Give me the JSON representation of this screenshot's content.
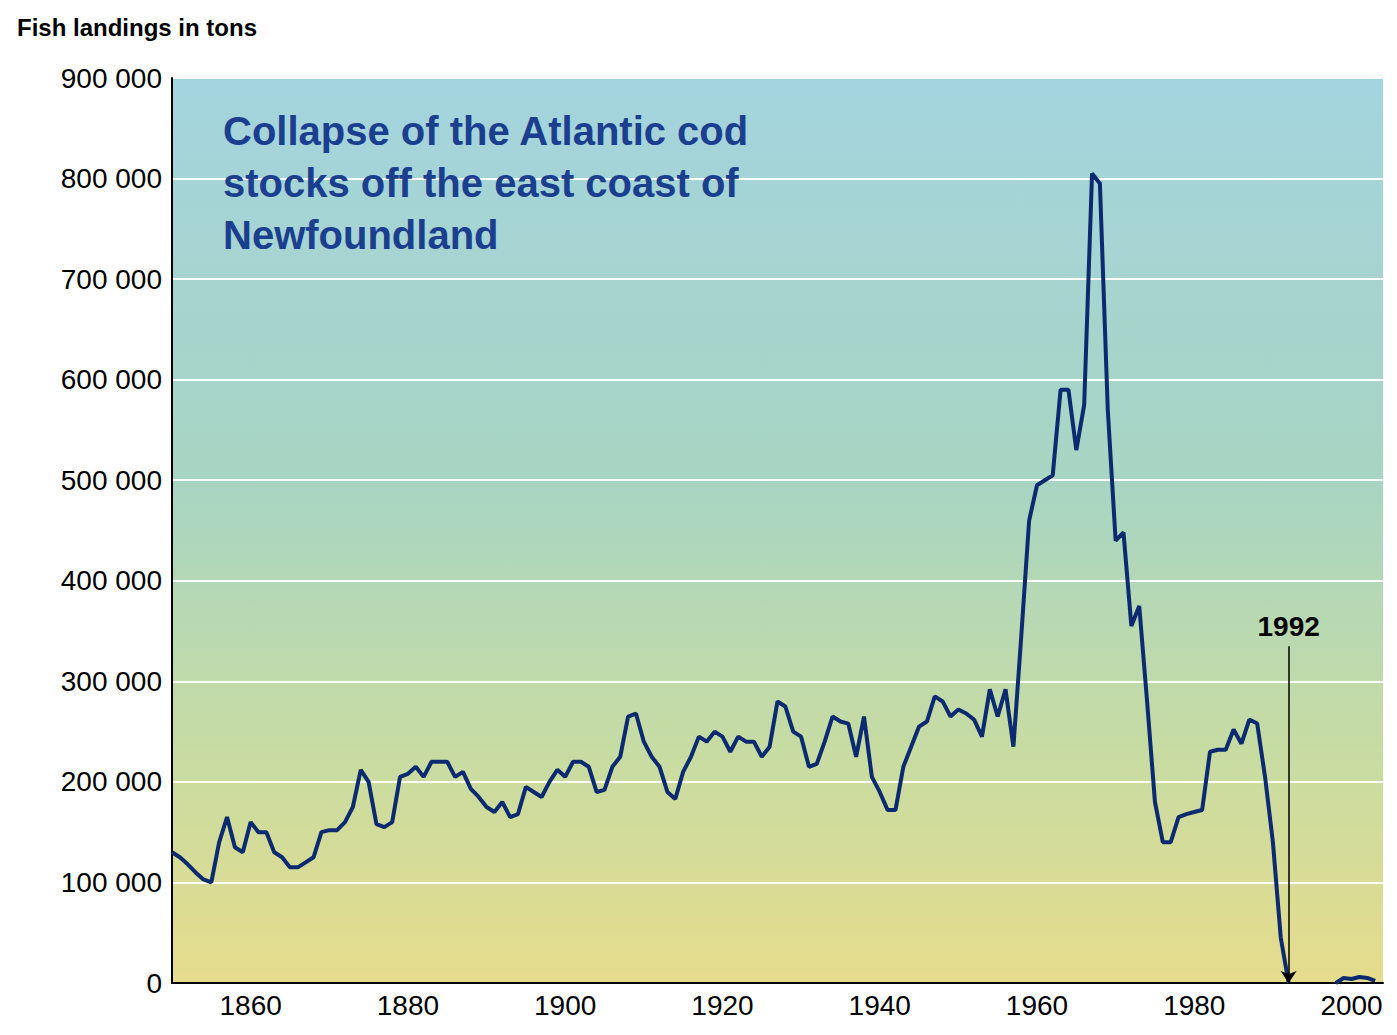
{
  "chart_data": {
    "type": "line",
    "title": "Collapse of the Atlantic cod stocks off the east coast of Newfoundland",
    "y_label": "Fish landings in tons",
    "color": "#0b2a6f",
    "grid": true,
    "x": [
      1850,
      1851,
      1852,
      1853,
      1854,
      1855,
      1856,
      1857,
      1858,
      1859,
      1860,
      1861,
      1862,
      1863,
      1864,
      1865,
      1866,
      1867,
      1868,
      1869,
      1870,
      1871,
      1872,
      1873,
      1874,
      1875,
      1876,
      1877,
      1878,
      1879,
      1880,
      1881,
      1882,
      1883,
      1884,
      1885,
      1886,
      1887,
      1888,
      1889,
      1890,
      1891,
      1892,
      1893,
      1894,
      1895,
      1896,
      1897,
      1898,
      1899,
      1900,
      1901,
      1902,
      1903,
      1904,
      1905,
      1906,
      1907,
      1908,
      1909,
      1910,
      1911,
      1912,
      1913,
      1914,
      1915,
      1916,
      1917,
      1918,
      1919,
      1920,
      1921,
      1922,
      1923,
      1924,
      1925,
      1926,
      1927,
      1928,
      1929,
      1930,
      1931,
      1932,
      1933,
      1934,
      1935,
      1936,
      1937,
      1938,
      1939,
      1940,
      1941,
      1942,
      1943,
      1944,
      1945,
      1946,
      1947,
      1948,
      1949,
      1950,
      1951,
      1952,
      1953,
      1954,
      1955,
      1956,
      1957,
      1958,
      1959,
      1960,
      1961,
      1962,
      1963,
      1964,
      1965,
      1966,
      1967,
      1968,
      1969,
      1970,
      1971,
      1972,
      1973,
      1974,
      1975,
      1976,
      1977,
      1978,
      1979,
      1980,
      1981,
      1982,
      1983,
      1984,
      1985,
      1986,
      1987,
      1988,
      1989,
      1990,
      1991,
      1992,
      1993,
      1994,
      1995,
      1996,
      1997,
      1998,
      1999,
      2000,
      2001,
      2002,
      2003
    ],
    "values": [
      130000,
      125000,
      118000,
      110000,
      103000,
      100000,
      140000,
      165000,
      135000,
      130000,
      160000,
      150000,
      150000,
      130000,
      125000,
      115000,
      115000,
      120000,
      125000,
      150000,
      152000,
      152000,
      160000,
      175000,
      212000,
      200000,
      158000,
      155000,
      160000,
      205000,
      208000,
      215000,
      205000,
      220000,
      220000,
      220000,
      205000,
      210000,
      193000,
      185000,
      175000,
      170000,
      180000,
      165000,
      168000,
      195000,
      190000,
      185000,
      200000,
      212000,
      205000,
      220000,
      220000,
      215000,
      190000,
      192000,
      215000,
      225000,
      265000,
      268000,
      240000,
      225000,
      215000,
      190000,
      183000,
      210000,
      225000,
      245000,
      240000,
      250000,
      245000,
      230000,
      245000,
      240000,
      240000,
      225000,
      235000,
      280000,
      275000,
      250000,
      245000,
      215000,
      218000,
      240000,
      265000,
      260000,
      258000,
      225000,
      265000,
      205000,
      190000,
      172000,
      172000,
      215000,
      235000,
      255000,
      260000,
      285000,
      280000,
      265000,
      272000,
      268000,
      262000,
      245000,
      292000,
      265000,
      292000,
      235000,
      345000,
      460000,
      495000,
      500000,
      505000,
      590000,
      590000,
      530000,
      575000,
      805000,
      795000,
      570000,
      440000,
      448000,
      355000,
      375000,
      280000,
      180000,
      140000,
      140000,
      165000,
      168000,
      170000,
      172000,
      230000,
      232000,
      232000,
      252000,
      238000,
      262000,
      258000,
      205000,
      140000,
      45000,
      0,
      null,
      null,
      null,
      null,
      null,
      0,
      5000,
      4000,
      6000,
      5000,
      2000
    ],
    "xlim": [
      1850,
      2004
    ],
    "xticks": [
      1860,
      1880,
      1900,
      1920,
      1940,
      1960,
      1980,
      2000
    ],
    "ylim": [
      0,
      900000
    ],
    "yticks": [
      {
        "value": 0,
        "label": "0"
      },
      {
        "value": 100000,
        "label": "100 000"
      },
      {
        "value": 200000,
        "label": "200 000"
      },
      {
        "value": 300000,
        "label": "300 000"
      },
      {
        "value": 400000,
        "label": "400 000"
      },
      {
        "value": 500000,
        "label": "500 000"
      },
      {
        "value": 600000,
        "label": "600 000"
      },
      {
        "value": 700000,
        "label": "700 000"
      },
      {
        "value": 800000,
        "label": "800 000"
      },
      {
        "value": 900000,
        "label": "900 000"
      }
    ],
    "annotations": [
      {
        "text": "1992",
        "x": 1992,
        "y": 0,
        "text_y": 335000
      }
    ]
  }
}
